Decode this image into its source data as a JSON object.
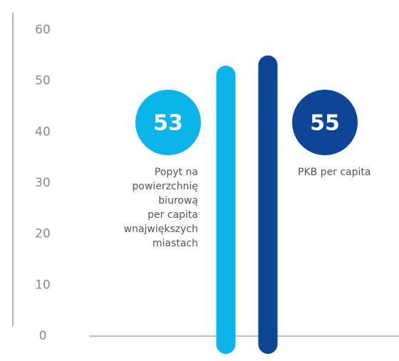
{
  "chart_data": {
    "type": "bar",
    "categories": [
      "Popyt na\npowierzchnię\nbiurową\nper capita\nwnajwiększych\nmiastach",
      "PKB per capita"
    ],
    "values": [
      53,
      55
    ],
    "colors": [
      "#0ab4e8",
      "#0d4697"
    ],
    "ylim": [
      0,
      60
    ],
    "yticks": [
      0,
      10,
      20,
      30,
      40,
      50,
      60
    ],
    "grid": false
  }
}
